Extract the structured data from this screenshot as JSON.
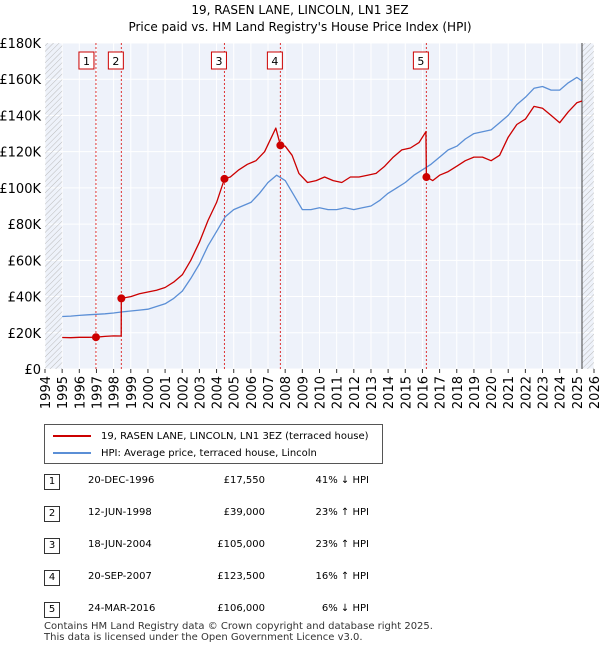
{
  "chart_data": {
    "type": "line",
    "title": "19, RASEN LANE, LINCOLN, LN1 3EZ",
    "subtitle": "Price paid vs. HM Land Registry's House Price Index (HPI)",
    "xlim": [
      1994,
      2026
    ],
    "ylim": [
      0,
      180000
    ],
    "x_ticks": [
      1994,
      1995,
      1996,
      1997,
      1998,
      1999,
      2000,
      2001,
      2002,
      2003,
      2004,
      2005,
      2006,
      2007,
      2008,
      2009,
      2010,
      2011,
      2012,
      2013,
      2014,
      2015,
      2016,
      2017,
      2018,
      2019,
      2020,
      2021,
      2022,
      2023,
      2024,
      2025,
      2026
    ],
    "y_ticks": [
      {
        "value": 0,
        "label": "£0"
      },
      {
        "value": 20000,
        "label": "£20K"
      },
      {
        "value": 40000,
        "label": "£40K"
      },
      {
        "value": 60000,
        "label": "£60K"
      },
      {
        "value": 80000,
        "label": "£80K"
      },
      {
        "value": 100000,
        "label": "£100K"
      },
      {
        "value": 120000,
        "label": "£120K"
      },
      {
        "value": 140000,
        "label": "£140K"
      },
      {
        "value": 160000,
        "label": "£160K"
      },
      {
        "value": 180000,
        "label": "£180K"
      }
    ],
    "series": [
      {
        "name": "19, RASEN LANE, LINCOLN, LN1 3EZ (terraced house)",
        "color": "#cc0000",
        "points": [
          [
            1995.0,
            17400
          ],
          [
            1995.5,
            17300
          ],
          [
            1996.0,
            17500
          ],
          [
            1996.5,
            17500
          ],
          [
            1996.97,
            17550
          ],
          [
            1997.5,
            18000
          ],
          [
            1998.0,
            18300
          ],
          [
            1998.44,
            18200
          ],
          [
            1998.45,
            39000
          ],
          [
            1999.0,
            40000
          ],
          [
            1999.5,
            41500
          ],
          [
            2000.0,
            42500
          ],
          [
            2000.5,
            43500
          ],
          [
            2001.0,
            45000
          ],
          [
            2001.5,
            48000
          ],
          [
            2002.0,
            52000
          ],
          [
            2002.5,
            60000
          ],
          [
            2003.0,
            70000
          ],
          [
            2003.5,
            82000
          ],
          [
            2004.0,
            92000
          ],
          [
            2004.46,
            105000
          ],
          [
            2004.8,
            106000
          ],
          [
            2005.3,
            110000
          ],
          [
            2005.8,
            113000
          ],
          [
            2006.3,
            115000
          ],
          [
            2006.8,
            120000
          ],
          [
            2007.2,
            128000
          ],
          [
            2007.45,
            133000
          ],
          [
            2007.72,
            123500
          ],
          [
            2008.0,
            123000
          ],
          [
            2008.4,
            118000
          ],
          [
            2008.8,
            108000
          ],
          [
            2009.3,
            103000
          ],
          [
            2009.8,
            104000
          ],
          [
            2010.3,
            106000
          ],
          [
            2010.8,
            104000
          ],
          [
            2011.3,
            103000
          ],
          [
            2011.8,
            106000
          ],
          [
            2012.3,
            106000
          ],
          [
            2012.8,
            107000
          ],
          [
            2013.3,
            108000
          ],
          [
            2013.8,
            112000
          ],
          [
            2014.3,
            117000
          ],
          [
            2014.8,
            121000
          ],
          [
            2015.3,
            122000
          ],
          [
            2015.8,
            125000
          ],
          [
            2016.2,
            131000
          ],
          [
            2016.23,
            106000
          ],
          [
            2016.6,
            104000
          ],
          [
            2017.0,
            107000
          ],
          [
            2017.5,
            109000
          ],
          [
            2018.0,
            112000
          ],
          [
            2018.5,
            115000
          ],
          [
            2019.0,
            117000
          ],
          [
            2019.5,
            117000
          ],
          [
            2020.0,
            115000
          ],
          [
            2020.5,
            118000
          ],
          [
            2021.0,
            128000
          ],
          [
            2021.5,
            135000
          ],
          [
            2022.0,
            138000
          ],
          [
            2022.5,
            145000
          ],
          [
            2023.0,
            144000
          ],
          [
            2023.5,
            140000
          ],
          [
            2024.0,
            136000
          ],
          [
            2024.5,
            142000
          ],
          [
            2025.0,
            147000
          ],
          [
            2025.3,
            148000
          ]
        ]
      },
      {
        "name": "HPI: Average price, terraced house, Lincoln",
        "color": "#5b8fd6",
        "points": [
          [
            1995.0,
            29000
          ],
          [
            1995.5,
            29200
          ],
          [
            1996.0,
            29600
          ],
          [
            1996.5,
            29900
          ],
          [
            1997.0,
            30200
          ],
          [
            1997.5,
            30500
          ],
          [
            1998.0,
            30900
          ],
          [
            1998.5,
            31500
          ],
          [
            1999.0,
            32000
          ],
          [
            1999.5,
            32500
          ],
          [
            2000.0,
            33000
          ],
          [
            2000.5,
            34500
          ],
          [
            2001.0,
            36000
          ],
          [
            2001.5,
            39000
          ],
          [
            2002.0,
            43000
          ],
          [
            2002.5,
            50000
          ],
          [
            2003.0,
            58000
          ],
          [
            2003.5,
            68000
          ],
          [
            2004.0,
            76000
          ],
          [
            2004.5,
            84000
          ],
          [
            2005.0,
            88000
          ],
          [
            2005.5,
            90000
          ],
          [
            2006.0,
            92000
          ],
          [
            2006.5,
            97000
          ],
          [
            2007.0,
            103000
          ],
          [
            2007.5,
            107000
          ],
          [
            2008.0,
            104000
          ],
          [
            2008.5,
            96000
          ],
          [
            2009.0,
            88000
          ],
          [
            2009.5,
            88000
          ],
          [
            2010.0,
            89000
          ],
          [
            2010.5,
            88000
          ],
          [
            2011.0,
            88000
          ],
          [
            2011.5,
            89000
          ],
          [
            2012.0,
            88000
          ],
          [
            2012.5,
            89000
          ],
          [
            2013.0,
            90000
          ],
          [
            2013.5,
            93000
          ],
          [
            2014.0,
            97000
          ],
          [
            2014.5,
            100000
          ],
          [
            2015.0,
            103000
          ],
          [
            2015.5,
            107000
          ],
          [
            2016.0,
            110000
          ],
          [
            2016.5,
            113000
          ],
          [
            2017.0,
            117000
          ],
          [
            2017.5,
            121000
          ],
          [
            2018.0,
            123000
          ],
          [
            2018.5,
            127000
          ],
          [
            2019.0,
            130000
          ],
          [
            2019.5,
            131000
          ],
          [
            2020.0,
            132000
          ],
          [
            2020.5,
            136000
          ],
          [
            2021.0,
            140000
          ],
          [
            2021.5,
            146000
          ],
          [
            2022.0,
            150000
          ],
          [
            2022.5,
            155000
          ],
          [
            2023.0,
            156000
          ],
          [
            2023.5,
            154000
          ],
          [
            2024.0,
            154000
          ],
          [
            2024.5,
            158000
          ],
          [
            2025.0,
            161000
          ],
          [
            2025.3,
            159000
          ]
        ]
      }
    ],
    "sales": [
      {
        "num": "1",
        "x": 1996.97,
        "price": 17550,
        "date": "20-DEC-1996",
        "price_label": "£17,550",
        "hpi": "41% ↓ HPI"
      },
      {
        "num": "2",
        "x": 1998.45,
        "price": 39000,
        "date": "12-JUN-1998",
        "price_label": "£39,000",
        "hpi": "23% ↑ HPI"
      },
      {
        "num": "3",
        "x": 2004.46,
        "price": 105000,
        "date": "18-JUN-2004",
        "price_label": "£105,000",
        "hpi": "23% ↑ HPI"
      },
      {
        "num": "4",
        "x": 2007.72,
        "price": 123500,
        "date": "20-SEP-2007",
        "price_label": "£123,500",
        "hpi": "16% ↑ HPI"
      },
      {
        "num": "5",
        "x": 2016.23,
        "price": 106000,
        "date": "24-MAR-2016",
        "price_label": "£106,000",
        "hpi": "6% ↓ HPI"
      }
    ],
    "hatched_periods": [
      [
        1994,
        1995
      ],
      [
        2025.3,
        2026
      ]
    ]
  },
  "footer": {
    "line1": "Contains HM Land Registry data © Crown copyright and database right 2025.",
    "line2": "This data is licensed under the Open Government Licence v3.0."
  }
}
